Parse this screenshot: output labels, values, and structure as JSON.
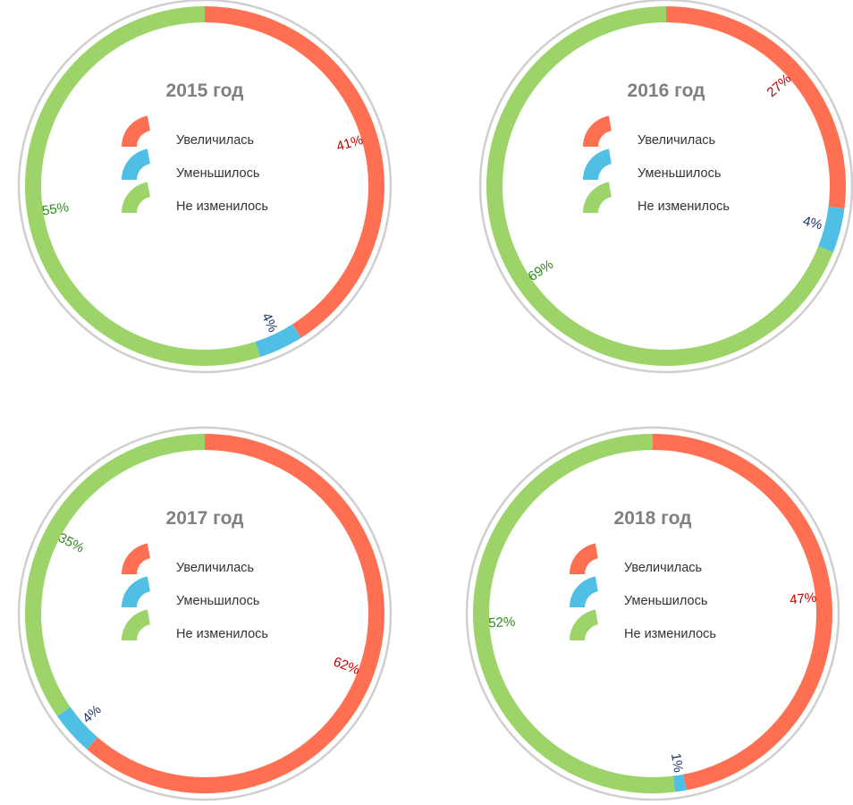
{
  "legend": [
    {
      "label": "Увеличилась",
      "color": "#FF7052",
      "label_color": "#C00000"
    },
    {
      "label": "Уменьшилось",
      "color": "#4FBFE6",
      "label_color": "#1F3864"
    },
    {
      "label": "Не изменилось",
      "color": "#9CD46A",
      "label_color": "#2E8B1E"
    }
  ],
  "chart_data": [
    {
      "type": "pie",
      "title": "2015 год",
      "categories": [
        "Увеличилась",
        "Уменьшилось",
        "Не изменилось"
      ],
      "values": [
        41,
        4,
        55
      ],
      "labels": [
        "41%",
        "4%",
        "55%"
      ]
    },
    {
      "type": "pie",
      "title": "2016 год",
      "categories": [
        "Увеличилась",
        "Уменьшилось",
        "Не изменилось"
      ],
      "values": [
        27,
        4,
        69
      ],
      "labels": [
        "27%",
        "4%",
        "69%"
      ]
    },
    {
      "type": "pie",
      "title": "2017 год",
      "categories": [
        "Увеличилась",
        "Уменьшилось",
        "Не изменилось"
      ],
      "values": [
        62,
        4,
        35
      ],
      "labels": [
        "62%",
        "4%",
        "35%"
      ]
    },
    {
      "type": "pie",
      "title": "2018 год",
      "categories": [
        "Увеличилась",
        "Уменьшилось",
        "Не изменилось"
      ],
      "values": [
        47,
        1,
        52
      ],
      "labels": [
        "47%",
        "1%",
        "52%"
      ]
    }
  ]
}
